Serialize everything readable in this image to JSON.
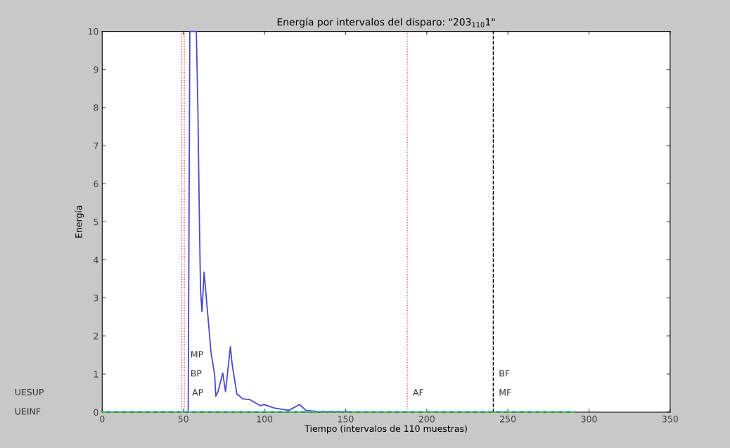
{
  "chart_data": {
    "type": "line",
    "title": "Energía por intervalos del disparo: \"203$_{110}$1\"",
    "xlabel": "Tiempo (intervalos de 110 muestras)",
    "ylabel": "Energía",
    "xlim": [
      0,
      350
    ],
    "xticks": [
      0,
      50,
      100,
      150,
      200,
      250,
      300,
      350
    ],
    "ylim": [
      0,
      10
    ],
    "yticks": [
      0,
      1,
      2,
      3,
      4,
      5,
      6,
      7,
      8,
      9,
      10
    ],
    "grid": false,
    "legend": false,
    "marker": "none",
    "series": [
      {
        "color": "#4a4ad0",
        "line_style": "solid",
        "x": [
          53,
          54,
          58,
          59,
          59.8,
          60.6,
          61.5,
          62.8,
          64.5,
          65.8,
          67,
          69.3,
          70,
          71.4,
          74.3,
          76,
          79,
          80,
          83,
          86.6,
          91,
          97.4,
          99.6,
          106,
          110,
          115,
          121.6,
          125.5,
          132,
          152
        ],
        "values": [
          0,
          10,
          10,
          7.9,
          5.3,
          3.2,
          2.64,
          3.68,
          2.83,
          2.2,
          1.59,
          0.98,
          0.42,
          0.54,
          1.03,
          0.54,
          1.72,
          1.28,
          0.48,
          0.35,
          0.33,
          0.17,
          0.2,
          0.11,
          0.08,
          0.05,
          0.2,
          0.05,
          0.02,
          0.02
        ]
      },
      {
        "color": "#40c040",
        "line_style": "dashed",
        "x": [
          0,
          291
        ],
        "values": [
          0,
          0
        ]
      },
      {
        "color": "#40c0c0",
        "line_style": "dashed",
        "x": [
          0,
          291
        ],
        "values": [
          0.02,
          0.02
        ]
      }
    ],
    "ref_lines": [
      {
        "axis": "x",
        "value": 49,
        "color": "#e04040",
        "line_style": "dotted"
      },
      {
        "axis": "x",
        "value": 50.6,
        "color": "#e04040",
        "line_style": "dotted"
      },
      {
        "axis": "x",
        "value": 188,
        "color": "#e040e0",
        "line_style": "dotted"
      },
      {
        "axis": "x",
        "value": 241,
        "color": "#000000",
        "line_style": "dashed"
      }
    ],
    "annotations": [
      {
        "text": "MP",
        "x": 52,
        "y": 1.5
      },
      {
        "text": "BP",
        "x": 52,
        "y": 1.0
      },
      {
        "text": "AP",
        "x": 53,
        "y": 0.5
      },
      {
        "text": "AF",
        "x": 189,
        "y": 0.5
      },
      {
        "text": "BF",
        "x": 242,
        "y": 1.0
      },
      {
        "text": "MF",
        "x": 242,
        "y": 0.5
      },
      "UESUP",
      "UEINF"
    ]
  }
}
